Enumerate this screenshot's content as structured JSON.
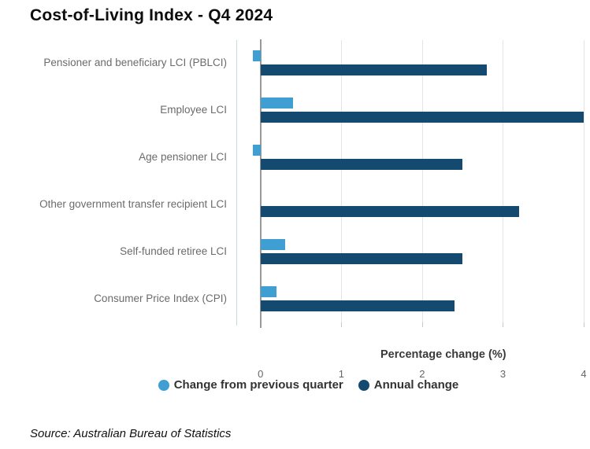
{
  "title": "Cost-of-Living Index - Q4 2024",
  "source": "Source: Australian Bureau of Statistics",
  "chart_data": {
    "type": "bar",
    "orientation": "horizontal",
    "title": "Cost-of-Living Index - Q4 2024",
    "categories": [
      "Pensioner and beneficiary LCI (PBLCI)",
      "Employee LCI",
      "Age pensioner LCI",
      "Other government transfer recipient LCI",
      "Self-funded retiree LCI",
      "Consumer Price Index (CPI)"
    ],
    "series": [
      {
        "name": "Change from previous quarter",
        "color": "#3f9ed2",
        "values": [
          -0.1,
          0.4,
          -0.1,
          0.0,
          0.3,
          0.2
        ]
      },
      {
        "name": "Annual change",
        "color": "#154a70",
        "values": [
          2.8,
          4.0,
          2.5,
          3.2,
          2.5,
          2.4
        ]
      }
    ],
    "xlabel": "Percentage change (%)",
    "xticks": [
      0,
      1,
      2,
      3,
      4
    ],
    "xlim": [
      -0.3,
      4.0
    ],
    "grid": "vertical-on",
    "legend_position": "bottom"
  },
  "colors": {
    "series_quarterly": "#3f9ed2",
    "series_annual": "#154a70",
    "gridline": "#e4e4e4",
    "zero_line": "#999999",
    "plot_left_border": "#ccd7e0",
    "category_text": "#6b6b6b",
    "tick_text": "#666666",
    "axis_label_text": "#3a3a3a",
    "legend_text": "#333333",
    "title_text": "#0d0d0d",
    "background": "#ffffff"
  }
}
